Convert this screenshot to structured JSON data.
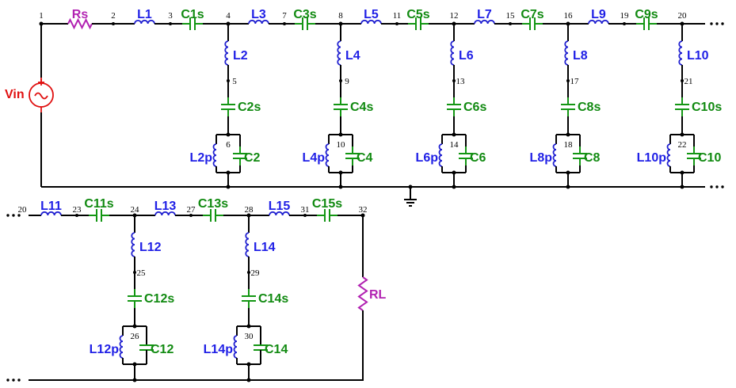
{
  "title": "",
  "colors": {
    "wire": "#000000",
    "inductor": "#2020e6",
    "capacitor": "#118a11",
    "resistor": "#b223b2",
    "source": "#e01010"
  },
  "source": {
    "label": "Vin",
    "node": "1"
  },
  "load": {
    "label": "RL"
  },
  "series_resistor": {
    "label": "Rs",
    "node": "2"
  },
  "row1": {
    "series": [
      {
        "inductor": "L1",
        "node_mid": "3",
        "capacitor": "C1s",
        "node_end": "4"
      },
      {
        "inductor": "L3",
        "node_mid": "7",
        "capacitor": "C3s",
        "node_end": "8"
      },
      {
        "inductor": "L5",
        "node_mid": "11",
        "capacitor": "C5s",
        "node_end": "12"
      },
      {
        "inductor": "L7",
        "node_mid": "15",
        "capacitor": "C7s",
        "node_end": "16"
      },
      {
        "inductor": "L9",
        "node_mid": "19",
        "capacitor": "C9s",
        "node_end": "20"
      }
    ],
    "shunts": [
      {
        "inductor": "L2",
        "node_a": "5",
        "capacitor_s": "C2s",
        "node_b": "6",
        "inductor_p": "L2p",
        "capacitor_p": "C2"
      },
      {
        "inductor": "L4",
        "node_a": "9",
        "capacitor_s": "C4s",
        "node_b": "10",
        "inductor_p": "L4p",
        "capacitor_p": "C4"
      },
      {
        "inductor": "L6",
        "node_a": "13",
        "capacitor_s": "C6s",
        "node_b": "14",
        "inductor_p": "L6p",
        "capacitor_p": "C6"
      },
      {
        "inductor": "L8",
        "node_a": "17",
        "capacitor_s": "C8s",
        "node_b": "18",
        "inductor_p": "L8p",
        "capacitor_p": "C8"
      },
      {
        "inductor": "L10",
        "node_a": "21",
        "capacitor_s": "C10s",
        "node_b": "22",
        "inductor_p": "L10p",
        "capacitor_p": "C10"
      }
    ]
  },
  "row2": {
    "start_node": "20",
    "series": [
      {
        "inductor": "L11",
        "node_mid": "23",
        "capacitor": "C11s",
        "node_end": "24"
      },
      {
        "inductor": "L13",
        "node_mid": "27",
        "capacitor": "C13s",
        "node_end": "28"
      },
      {
        "inductor": "L15",
        "node_mid": "31",
        "capacitor": "C15s",
        "node_end": "32"
      }
    ],
    "shunts": [
      {
        "inductor": "L12",
        "node_a": "25",
        "capacitor_s": "C12s",
        "node_b": "26",
        "inductor_p": "L12p",
        "capacitor_p": "C12"
      },
      {
        "inductor": "L14",
        "node_a": "29",
        "capacitor_s": "C14s",
        "node_b": "30",
        "inductor_p": "L14p",
        "capacitor_p": "C14"
      }
    ]
  }
}
